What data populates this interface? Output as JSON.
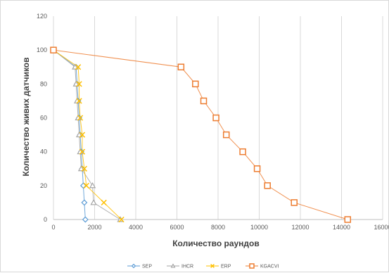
{
  "chart_data": {
    "type": "scatter",
    "xlabel": "Количество раундов",
    "ylabel": "Количество живих датчиков",
    "xlim": [
      0,
      16000
    ],
    "ylim": [
      0,
      120
    ],
    "xticks": [
      "0",
      "2000",
      "4000",
      "6000",
      "8000",
      "10000",
      "12000",
      "14000",
      "16000"
    ],
    "yticks": [
      "0",
      "20",
      "40",
      "60",
      "80",
      "100",
      "120"
    ],
    "grid": "vertical",
    "legend_position": "bottom",
    "series": [
      {
        "name": "SEP",
        "color": "#5b9bd5",
        "marker": "diamond",
        "points": [
          [
            0,
            100
          ],
          [
            1100,
            90
          ],
          [
            1150,
            80
          ],
          [
            1200,
            70
          ],
          [
            1250,
            60
          ],
          [
            1300,
            50
          ],
          [
            1350,
            40
          ],
          [
            1400,
            30
          ],
          [
            1450,
            20
          ],
          [
            1500,
            10
          ],
          [
            1550,
            0
          ]
        ]
      },
      {
        "name": "IHCR",
        "color": "#a5a5a5",
        "marker": "triangle",
        "points": [
          [
            0,
            100
          ],
          [
            1050,
            90
          ],
          [
            1100,
            80
          ],
          [
            1150,
            70
          ],
          [
            1200,
            60
          ],
          [
            1250,
            50
          ],
          [
            1300,
            40
          ],
          [
            1350,
            30
          ],
          [
            1900,
            20
          ],
          [
            1950,
            10
          ],
          [
            3250,
            0
          ]
        ]
      },
      {
        "name": "ERP",
        "color": "#ffc000",
        "marker": "x",
        "points": [
          [
            0,
            100
          ],
          [
            1200,
            90
          ],
          [
            1250,
            80
          ],
          [
            1250,
            70
          ],
          [
            1300,
            60
          ],
          [
            1400,
            50
          ],
          [
            1400,
            40
          ],
          [
            1500,
            30
          ],
          [
            1600,
            20
          ],
          [
            2450,
            10
          ],
          [
            3300,
            0
          ]
        ]
      },
      {
        "name": "KGACVI",
        "color": "#ed7d31",
        "marker": "square",
        "points": [
          [
            0,
            100
          ],
          [
            6200,
            90
          ],
          [
            6900,
            80
          ],
          [
            7300,
            70
          ],
          [
            7900,
            60
          ],
          [
            8400,
            50
          ],
          [
            9200,
            40
          ],
          [
            9900,
            30
          ],
          [
            10400,
            20
          ],
          [
            11700,
            10
          ],
          [
            14300,
            0
          ]
        ]
      }
    ]
  }
}
